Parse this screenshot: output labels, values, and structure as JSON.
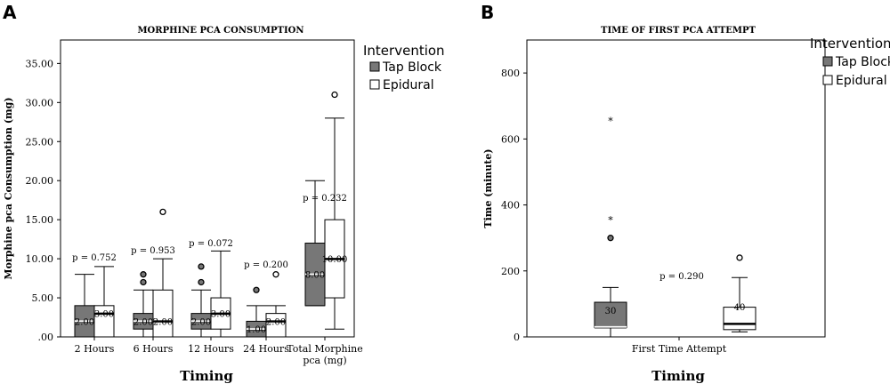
{
  "panels": {
    "a": {
      "letter": "A",
      "legend": {
        "title": "Intervention",
        "entries": [
          "Tap Block",
          "Epidural"
        ],
        "colors": [
          "#777777",
          "#ffffff"
        ]
      }
    },
    "b": {
      "letter": "B",
      "legend": {
        "title": "Intervention",
        "entries": [
          "Tap Block",
          "Epidural"
        ],
        "colors": [
          "#777777",
          "#ffffff"
        ]
      }
    }
  },
  "chart_data": [
    {
      "type": "box",
      "title": "MORPHINE PCA CONSUMPTION",
      "xlabel": "Timing",
      "ylabel": "Morphine pca Consumption (mg)",
      "ylim": [
        0,
        38
      ],
      "yticks": [
        ".00",
        "5.00",
        "10.00",
        "15.00",
        "20.00",
        "25.00",
        "30.00",
        "35.00"
      ],
      "categories": [
        "2 Hours",
        "6 Hours",
        "12 Hours",
        "24 Hours",
        "Total Morphine pca (mg)"
      ],
      "p_values": [
        "p = 0.752",
        "p = 0.953",
        "p = 0.072",
        "p = 0.200",
        "p = 0.232"
      ],
      "series": [
        {
          "name": "Tap Block",
          "color": "#777777",
          "boxes": [
            {
              "min": 0,
              "q1": 0,
              "median": 2,
              "q3": 4,
              "max": 8,
              "median_label": "2.00",
              "outliers": [],
              "extremes": []
            },
            {
              "min": 0,
              "q1": 1,
              "median": 2,
              "q3": 3,
              "max": 6,
              "median_label": "2.00",
              "outliers": [
                7,
                8
              ],
              "extremes": []
            },
            {
              "min": 0,
              "q1": 1,
              "median": 2,
              "q3": 3,
              "max": 6,
              "median_label": "2.00",
              "outliers": [
                7,
                9
              ],
              "extremes": []
            },
            {
              "min": 0,
              "q1": 0,
              "median": 1,
              "q3": 2,
              "max": 4,
              "median_label": "1.00",
              "outliers": [
                6
              ],
              "extremes": []
            },
            {
              "min": 4,
              "q1": 4,
              "median": 8,
              "q3": 12,
              "max": 20,
              "median_label": "8.00",
              "outliers": [],
              "extremes": []
            }
          ]
        },
        {
          "name": "Epidural",
          "color": "#ffffff",
          "boxes": [
            {
              "min": 0,
              "q1": 0,
              "median": 3,
              "q3": 4,
              "max": 9,
              "median_label": "3.00",
              "outliers": [],
              "extremes": []
            },
            {
              "min": 0,
              "q1": 0,
              "median": 2,
              "q3": 6,
              "max": 10,
              "median_label": "2.00",
              "outliers": [
                16
              ],
              "extremes": []
            },
            {
              "min": 0,
              "q1": 1,
              "median": 3,
              "q3": 5,
              "max": 11,
              "median_label": "3.00",
              "outliers": [],
              "extremes": []
            },
            {
              "min": 0,
              "q1": 0,
              "median": 2,
              "q3": 3,
              "max": 4,
              "median_label": "2.00",
              "outliers": [
                8
              ],
              "extremes": []
            },
            {
              "min": 1,
              "q1": 5,
              "median": 10,
              "q3": 15,
              "max": 28,
              "median_label": "10.00",
              "outliers": [
                31
              ],
              "extremes": []
            }
          ]
        }
      ]
    },
    {
      "type": "box",
      "title": "TIME OF FIRST PCA ATTEMPT",
      "xlabel": "Timing",
      "ylabel": "Time (minute)",
      "ylim": [
        0,
        900
      ],
      "yticks": [
        "0",
        "200",
        "400",
        "600",
        "800"
      ],
      "categories": [
        "First Time Attempt"
      ],
      "p_values": [
        "p = 0.290"
      ],
      "series": [
        {
          "name": "Tap Block",
          "color": "#777777",
          "boxes": [
            {
              "min": 0,
              "q1": 28,
              "median": 30,
              "q3": 105,
              "max": 150,
              "median_label": "30",
              "outliers": [
                300
              ],
              "extremes": [
                360,
                660
              ]
            }
          ]
        },
        {
          "name": "Epidural",
          "color": "#ffffff",
          "boxes": [
            {
              "min": 15,
              "q1": 22,
              "median": 40,
              "q3": 90,
              "max": 180,
              "median_label": "40",
              "outliers": [
                240
              ],
              "extremes": []
            }
          ]
        }
      ]
    }
  ]
}
